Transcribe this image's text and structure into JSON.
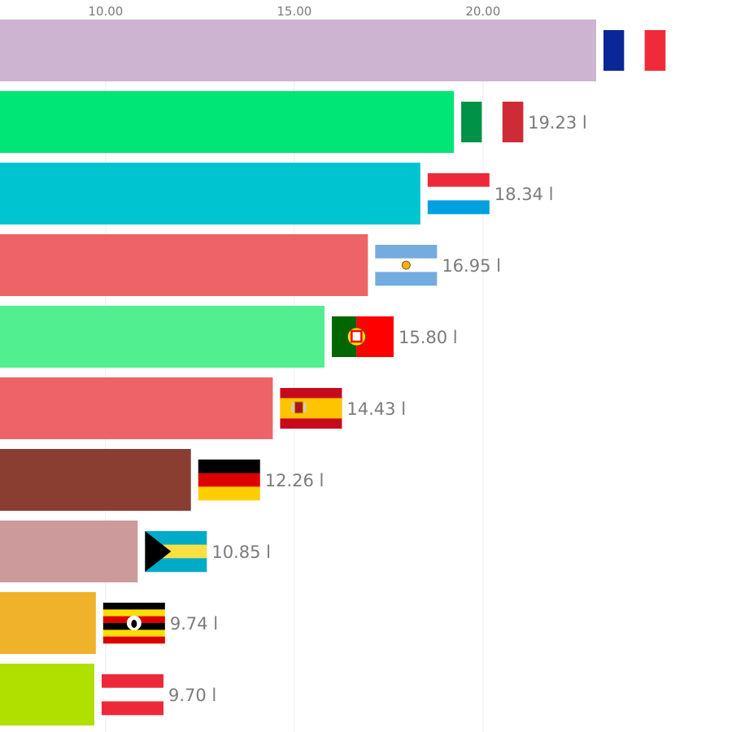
{
  "chart_data": {
    "type": "bar",
    "orientation": "horizontal",
    "x_ticks": [
      {
        "value": 10,
        "label": "10.00"
      },
      {
        "value": 15,
        "label": "15.00"
      },
      {
        "value": 20,
        "label": "20.00"
      }
    ],
    "xlim": [
      7.2,
      26.6
    ],
    "grid": true,
    "unit_suffix": " l",
    "bars": [
      {
        "flag": "france",
        "value": 23.0,
        "label": "",
        "color": "#cdb4d0"
      },
      {
        "flag": "italy",
        "value": 19.23,
        "label": "19.23 l",
        "color": "#00e676"
      },
      {
        "flag": "luxembourg",
        "value": 18.34,
        "label": "18.34 l",
        "color": "#00c4d0"
      },
      {
        "flag": "argentina",
        "value": 16.95,
        "label": "16.95 l",
        "color": "#ee6367"
      },
      {
        "flag": "portugal",
        "value": 15.8,
        "label": "15.80 l",
        "color": "#51ef8f"
      },
      {
        "flag": "spain",
        "value": 14.43,
        "label": "14.43 l",
        "color": "#ee6367"
      },
      {
        "flag": "germany",
        "value": 12.26,
        "label": "12.26 l",
        "color": "#8a3e32"
      },
      {
        "flag": "bahamas",
        "value": 10.85,
        "label": "10.85 l",
        "color": "#cd9a9b"
      },
      {
        "flag": "uganda",
        "value": 9.74,
        "label": "9.74 l",
        "color": "#efb22a"
      },
      {
        "flag": "austria",
        "value": 9.7,
        "label": "9.70 l",
        "color": "#b0e000"
      }
    ]
  }
}
